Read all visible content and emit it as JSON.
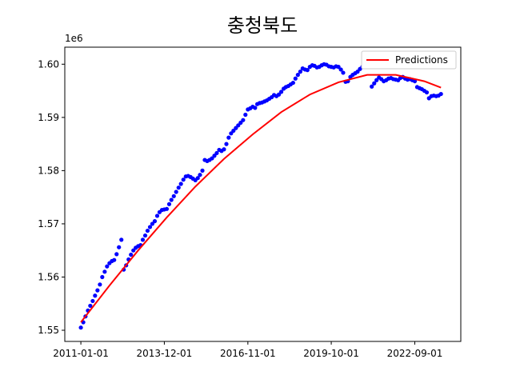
{
  "chart_data": {
    "type": "scatter",
    "title": "충청북도",
    "y_offset_label": "1e6",
    "xlim": [
      "2010-06-10",
      "2024-04-10"
    ],
    "xticks": [
      "2011-01-01",
      "2013-12-01",
      "2016-11-01",
      "2019-10-01",
      "2022-09-01"
    ],
    "ylim": [
      1547900,
      1603200
    ],
    "yticks": [
      {
        "value": 1550000,
        "label": "1.55"
      },
      {
        "value": 1560000,
        "label": "1.56"
      },
      {
        "value": 1570000,
        "label": "1.57"
      },
      {
        "value": 1580000,
        "label": "1.58"
      },
      {
        "value": 1590000,
        "label": "1.59"
      },
      {
        "value": 1600000,
        "label": "1.60"
      }
    ],
    "legend": "upper right",
    "x": [
      "2011-01-01",
      "2011-02-01",
      "2011-03-01",
      "2011-04-01",
      "2011-05-01",
      "2011-06-01",
      "2011-07-01",
      "2011-08-01",
      "2011-09-01",
      "2011-10-01",
      "2011-11-01",
      "2011-12-01",
      "2012-01-01",
      "2012-02-01",
      "2012-03-01",
      "2012-04-01",
      "2012-05-01",
      "2012-06-01",
      "2012-07-01",
      "2012-08-01",
      "2012-09-01",
      "2012-10-01",
      "2012-11-01",
      "2012-12-01",
      "2013-01-01",
      "2013-02-01",
      "2013-03-01",
      "2013-04-01",
      "2013-05-01",
      "2013-06-01",
      "2013-07-01",
      "2013-08-01",
      "2013-09-01",
      "2013-10-01",
      "2013-11-01",
      "2013-12-01",
      "2014-01-01",
      "2014-02-01",
      "2014-03-01",
      "2014-04-01",
      "2014-05-01",
      "2014-06-01",
      "2014-07-01",
      "2014-08-01",
      "2014-09-01",
      "2014-10-01",
      "2014-11-01",
      "2014-12-01",
      "2015-01-01",
      "2015-02-01",
      "2015-03-01",
      "2015-04-01",
      "2015-05-01",
      "2015-06-01",
      "2015-07-01",
      "2015-08-01",
      "2015-09-01",
      "2015-10-01",
      "2015-11-01",
      "2015-12-01",
      "2016-01-01",
      "2016-02-01",
      "2016-03-01",
      "2016-04-01",
      "2016-05-01",
      "2016-06-01",
      "2016-07-01",
      "2016-08-01",
      "2016-09-01",
      "2016-10-01",
      "2016-11-01",
      "2016-12-01",
      "2017-01-01",
      "2017-02-01",
      "2017-03-01",
      "2017-04-01",
      "2017-05-01",
      "2017-06-01",
      "2017-07-01",
      "2017-08-01",
      "2017-09-01",
      "2017-10-01",
      "2017-11-01",
      "2017-12-01",
      "2018-01-01",
      "2018-02-01",
      "2018-03-01",
      "2018-04-01",
      "2018-05-01",
      "2018-06-01",
      "2018-07-01",
      "2018-08-01",
      "2018-09-01",
      "2018-10-01",
      "2018-11-01",
      "2018-12-01",
      "2019-01-01",
      "2019-02-01",
      "2019-03-01",
      "2019-04-01",
      "2019-05-01",
      "2019-06-01",
      "2019-07-01",
      "2019-08-01",
      "2019-09-01",
      "2019-10-01",
      "2019-11-01",
      "2019-12-01",
      "2020-01-01",
      "2020-02-01",
      "2020-03-01",
      "2020-04-01",
      "2020-05-01",
      "2020-06-01",
      "2020-07-01",
      "2020-08-01",
      "2020-09-01",
      "2020-10-01",
      "2020-11-01",
      "2020-12-01",
      "2021-01-01",
      "2021-02-01",
      "2021-03-01",
      "2021-04-01",
      "2021-05-01",
      "2021-06-01",
      "2021-07-01",
      "2021-08-01",
      "2021-09-01",
      "2021-10-01",
      "2021-11-01",
      "2021-12-01",
      "2022-01-01",
      "2022-02-01",
      "2022-03-01",
      "2022-04-01",
      "2022-05-01",
      "2022-06-01",
      "2022-07-01",
      "2022-08-01",
      "2022-09-01",
      "2022-10-01",
      "2022-11-01",
      "2022-12-01",
      "2023-01-01",
      "2023-02-01",
      "2023-03-01",
      "2023-04-01",
      "2023-05-01",
      "2023-06-01",
      "2023-07-01",
      "2023-08-01"
    ],
    "values": [
      1550500,
      1551500,
      1552600,
      1553700,
      1554600,
      1555500,
      1556500,
      1557500,
      1558600,
      1560000,
      1561000,
      1562000,
      1562600,
      1563000,
      1563200,
      1564300,
      1565600,
      1567000,
      1561400,
      1562200,
      1563300,
      1564200,
      1565000,
      1565500,
      1565800,
      1566000,
      1567000,
      1567800,
      1568700,
      1569400,
      1570000,
      1570500,
      1571500,
      1572200,
      1572600,
      1572700,
      1572800,
      1573700,
      1574500,
      1575200,
      1576000,
      1576800,
      1577500,
      1578300,
      1578900,
      1579000,
      1578800,
      1578500,
      1578200,
      1578600,
      1579200,
      1580000,
      1582000,
      1581800,
      1582000,
      1582300,
      1582800,
      1583300,
      1583900,
      1583700,
      1584000,
      1585000,
      1586200,
      1587000,
      1587500,
      1588000,
      1588500,
      1589000,
      1589500,
      1590500,
      1591500,
      1591700,
      1592000,
      1591800,
      1592500,
      1592700,
      1592800,
      1593000,
      1593200,
      1593500,
      1593800,
      1594200,
      1594000,
      1594300,
      1594800,
      1595400,
      1595700,
      1595900,
      1596200,
      1596500,
      1597300,
      1598000,
      1598600,
      1599200,
      1599000,
      1598900,
      1599500,
      1599800,
      1599700,
      1599400,
      1599500,
      1599800,
      1600000,
      1599900,
      1599600,
      1599500,
      1599400,
      1599600,
      1599500,
      1599000,
      1598400,
      1596700,
      1596800,
      1597600,
      1598000,
      1598300,
      1598600,
      1599100,
      1599500,
      1600000,
      1599700,
      1599500,
      1595800,
      1596400,
      1597000,
      1597500,
      1597200,
      1596800,
      1597000,
      1597300,
      1597400,
      1597200,
      1597100,
      1597000,
      1597400,
      1597600,
      1597300,
      1597100,
      1597200,
      1597000,
      1596800,
      1595700,
      1595500,
      1595300,
      1595000,
      1594700,
      1593600,
      1594000,
      1594100,
      1594000,
      1594100,
      1594400
    ],
    "color": "#0000ff",
    "prediction": {
      "name": "Predictions",
      "color": "#ff0000",
      "x": [
        "2011-01-01",
        "2012-01-01",
        "2013-01-01",
        "2014-01-01",
        "2015-01-01",
        "2016-01-01",
        "2017-01-01",
        "2018-01-01",
        "2019-01-01",
        "2020-01-01",
        "2021-01-01",
        "2022-01-01",
        "2023-01-01",
        "2023-08-01"
      ],
      "values": [
        1551500,
        1558400,
        1565000,
        1571200,
        1577000,
        1582200,
        1586800,
        1591000,
        1594300,
        1596600,
        1598000,
        1598000,
        1596800,
        1595600
      ]
    }
  }
}
